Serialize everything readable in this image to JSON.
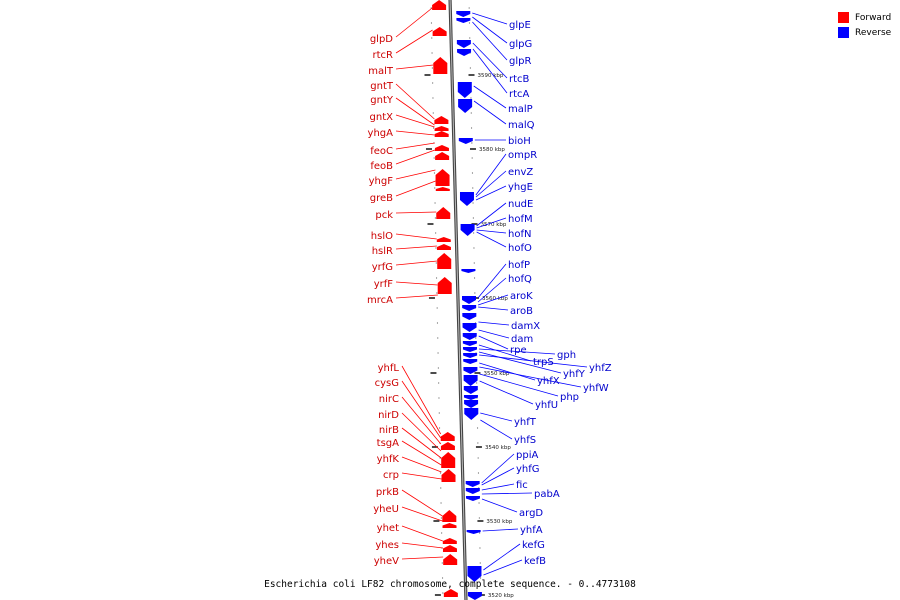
{
  "colors": {
    "forward": "#ff0000",
    "reverse": "#0000ff",
    "axis": "#777777"
  },
  "legend": {
    "forward_label": "Forward",
    "reverse_label": "Reverse"
  },
  "caption": "Escherichia coli LF82 chromosome, complete sequence. - 0..4773108",
  "kbp_ticks": [
    "3590 kbp",
    "3580 kbp",
    "3570 kbp",
    "3560 kbp",
    "3550 kbp",
    "3540 kbp",
    "3530 kbp",
    "3520 kbp"
  ],
  "forward_genes": [
    "glpD",
    "rtcR",
    "malT",
    "gntT",
    "gntY",
    "gntX",
    "yhgA",
    "feoC",
    "feoB",
    "yhgF",
    "greB",
    "pck",
    "hslO",
    "hslR",
    "yrfG",
    "yrfF",
    "mrcA",
    "yhfL",
    "cysG",
    "nirC",
    "nirD",
    "nirB",
    "tsgA",
    "yhfK",
    "crp",
    "prkB",
    "yheU",
    "yhet",
    "yhes",
    "yheV"
  ],
  "reverse_genes": [
    "glpE",
    "glpG",
    "glpR",
    "rtcB",
    "rtcA",
    "malP",
    "malQ",
    "bioH",
    "ompR",
    "envZ",
    "yhgE",
    "nudE",
    "hofM",
    "hofN",
    "hofO",
    "hofP",
    "hofQ",
    "aroK",
    "aroB",
    "damX",
    "dam",
    "rpe",
    "trpS",
    "gph",
    "yhfY",
    "yhfZ",
    "yhfX",
    "yhfW",
    "php",
    "yhfU",
    "yhfT",
    "yhfS",
    "ppiA",
    "yhfG",
    "fic",
    "pabA",
    "argD",
    "yhfA",
    "kefG",
    "kefB"
  ]
}
